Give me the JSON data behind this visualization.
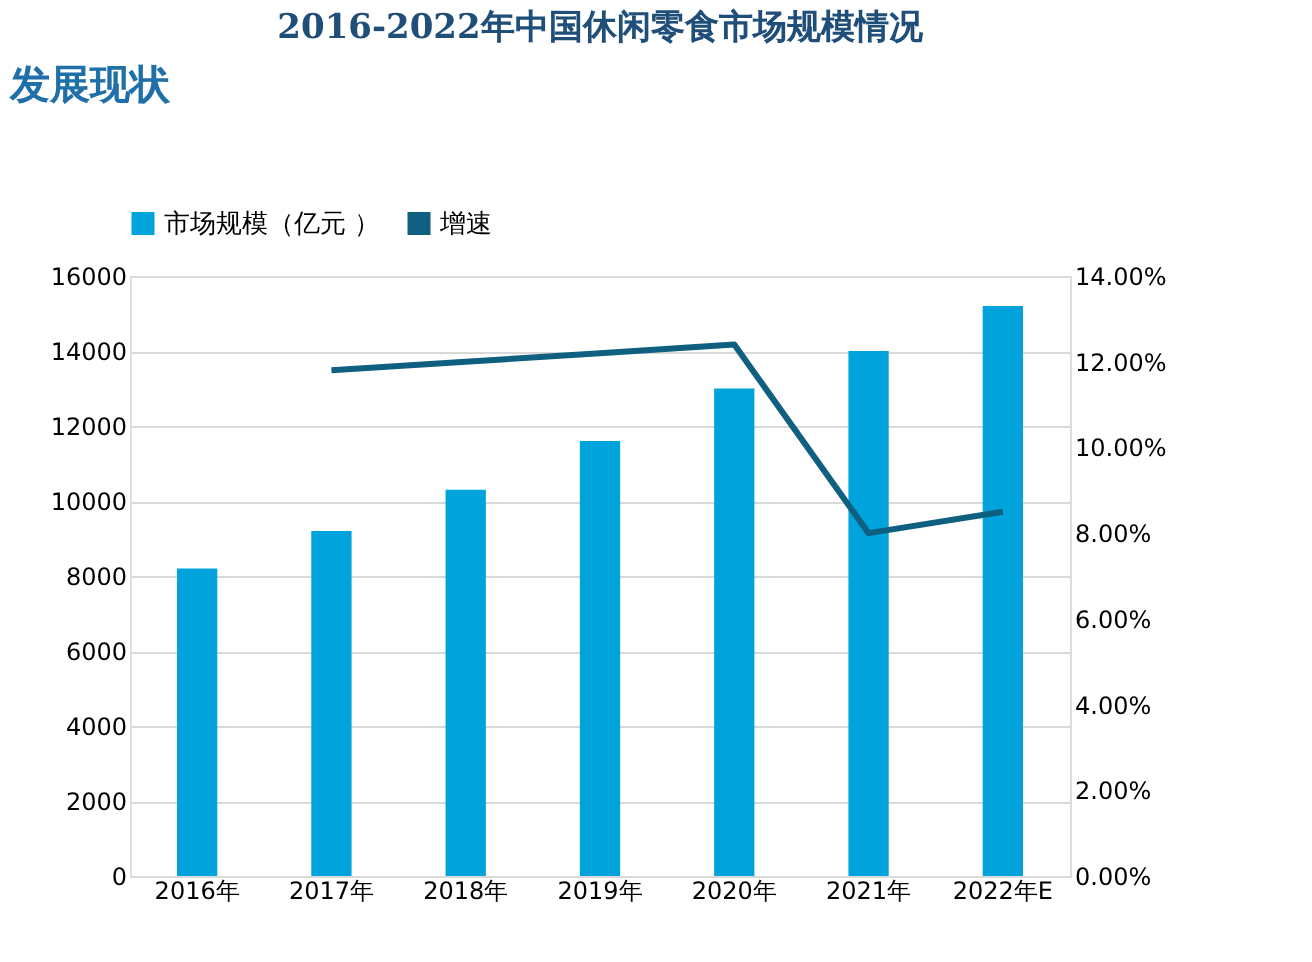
{
  "chart_data": {
    "type": "bar",
    "title": "2016-2022年中国休闲零食市场规模情况",
    "annotations": [
      "发展现状"
    ],
    "categories": [
      "2016年",
      "2017年",
      "2018年",
      "2019年",
      "2020年",
      "2021年",
      "2022年E"
    ],
    "series": [
      {
        "name": "市场规模（亿元 ）",
        "color": "#00a3db",
        "values": [
          8200,
          9200,
          10300,
          11600,
          13000,
          14000,
          15200
        ]
      },
      {
        "name": "增速",
        "color": "#0e5f80",
        "type": "line",
        "axis": "y2",
        "values": [
          null,
          11.8,
          12.0,
          12.2,
          12.4,
          8.0,
          8.5
        ]
      }
    ],
    "ylim": [
      0,
      16000
    ],
    "yticks": [
      0,
      2000,
      4000,
      6000,
      8000,
      10000,
      12000,
      14000,
      16000
    ],
    "y2lim": [
      0,
      14
    ],
    "y2ticks": [
      {
        "value": 0,
        "label": "0.00%"
      },
      {
        "value": 2,
        "label": "2.00%"
      },
      {
        "value": 4,
        "label": "4.00%"
      },
      {
        "value": 6,
        "label": "6.00%"
      },
      {
        "value": 8,
        "label": "8.00%"
      },
      {
        "value": 10,
        "label": "10.00%"
      },
      {
        "value": 12,
        "label": "12.00%"
      },
      {
        "value": 14,
        "label": "14.00%"
      }
    ],
    "grid": "y",
    "legend": "top"
  }
}
